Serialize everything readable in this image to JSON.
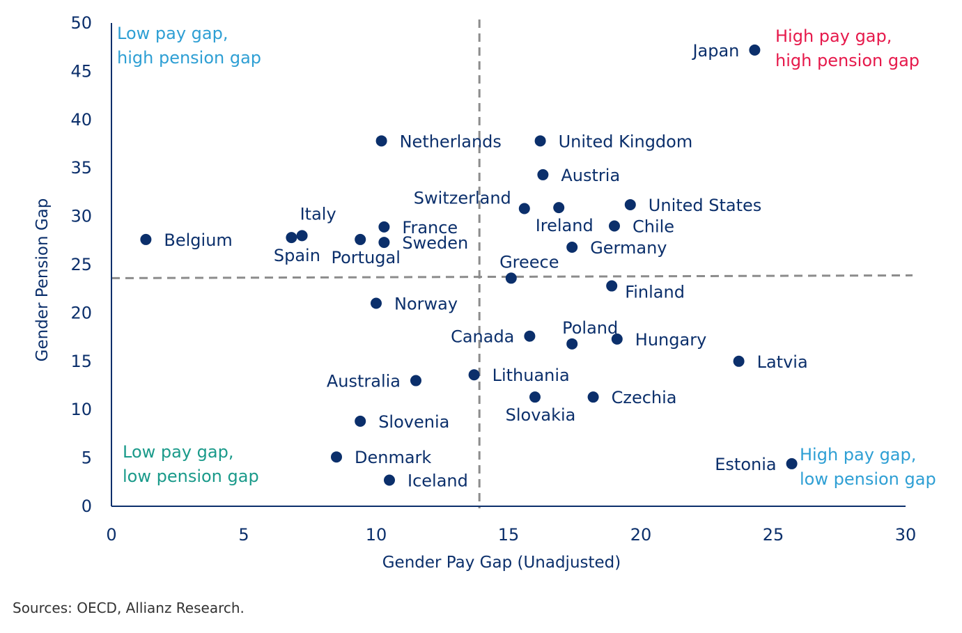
{
  "chart_data": {
    "type": "scatter",
    "xlabel": "Gender Pay Gap (Unadjusted)",
    "ylabel": "Gender Pension Gap",
    "xlim": [
      0,
      30
    ],
    "ylim": [
      0,
      50
    ],
    "x_ticks": [
      0,
      5,
      10,
      15,
      20,
      25,
      30
    ],
    "y_ticks": [
      0,
      5,
      10,
      15,
      20,
      25,
      30,
      35,
      40,
      45,
      50
    ],
    "grid": false,
    "reference_lines": {
      "x": 13.9,
      "y": 23.6
    },
    "points": [
      {
        "label": "Japan",
        "x": 24.3,
        "y": 47.2,
        "label_pos": "left"
      },
      {
        "label": "Netherlands",
        "x": 10.2,
        "y": 37.8,
        "label_pos": "right"
      },
      {
        "label": "United Kingdom",
        "x": 16.2,
        "y": 37.8,
        "label_pos": "right"
      },
      {
        "label": "Austria",
        "x": 16.3,
        "y": 34.3,
        "label_pos": "right"
      },
      {
        "label": "Switzerland",
        "x": 15.6,
        "y": 30.8,
        "label_pos": "above-left"
      },
      {
        "label": "Ireland",
        "x": 16.9,
        "y": 30.9,
        "label_pos": "below"
      },
      {
        "label": "United States",
        "x": 19.6,
        "y": 31.2,
        "label_pos": "right"
      },
      {
        "label": "Chile",
        "x": 19.0,
        "y": 29.0,
        "label_pos": "right"
      },
      {
        "label": "Italy",
        "x": 7.2,
        "y": 28.0,
        "label_pos": "above-right"
      },
      {
        "label": "Spain",
        "x": 6.8,
        "y": 27.8,
        "label_pos": "below"
      },
      {
        "label": "Belgium",
        "x": 1.3,
        "y": 27.6,
        "label_pos": "right"
      },
      {
        "label": "France",
        "x": 10.3,
        "y": 28.9,
        "label_pos": "right"
      },
      {
        "label": "Sweden",
        "x": 10.3,
        "y": 27.3,
        "label_pos": "right"
      },
      {
        "label": "Portugal",
        "x": 9.4,
        "y": 27.6,
        "label_pos": "below"
      },
      {
        "label": "Germany",
        "x": 17.4,
        "y": 26.8,
        "label_pos": "right"
      },
      {
        "label": "Greece",
        "x": 15.1,
        "y": 23.6,
        "label_pos": "above"
      },
      {
        "label": "Finland",
        "x": 18.9,
        "y": 22.8,
        "label_pos": "right-below"
      },
      {
        "label": "Norway",
        "x": 10.0,
        "y": 21.0,
        "label_pos": "right"
      },
      {
        "label": "Canada",
        "x": 15.8,
        "y": 17.6,
        "label_pos": "left"
      },
      {
        "label": "Poland",
        "x": 17.4,
        "y": 16.8,
        "label_pos": "above"
      },
      {
        "label": "Hungary",
        "x": 19.1,
        "y": 17.3,
        "label_pos": "right"
      },
      {
        "label": "Latvia",
        "x": 23.7,
        "y": 15.0,
        "label_pos": "right"
      },
      {
        "label": "Australia",
        "x": 11.5,
        "y": 13.0,
        "label_pos": "left"
      },
      {
        "label": "Lithuania",
        "x": 13.7,
        "y": 13.6,
        "label_pos": "right"
      },
      {
        "label": "Slovakia",
        "x": 16.0,
        "y": 11.3,
        "label_pos": "below"
      },
      {
        "label": "Czechia",
        "x": 18.2,
        "y": 11.3,
        "label_pos": "right"
      },
      {
        "label": "Slovenia",
        "x": 9.4,
        "y": 8.8,
        "label_pos": "right"
      },
      {
        "label": "Denmark",
        "x": 8.5,
        "y": 5.1,
        "label_pos": "right"
      },
      {
        "label": "Iceland",
        "x": 10.5,
        "y": 2.7,
        "label_pos": "right"
      },
      {
        "label": "Estonia",
        "x": 25.7,
        "y": 4.4,
        "label_pos": "left"
      }
    ],
    "quadrant_labels": [
      {
        "lines": [
          "Low pay gap,",
          "high pension gap"
        ],
        "position": "top-left",
        "color": "#2e9fd4"
      },
      {
        "lines": [
          "High pay gap,",
          "high pension gap"
        ],
        "position": "top-right",
        "color": "#e6194b"
      },
      {
        "lines": [
          "Low pay gap,",
          "low pension gap"
        ],
        "position": "bottom-left",
        "color": "#1a9a8a"
      },
      {
        "lines": [
          "High pay gap,",
          "low pension gap"
        ],
        "position": "bottom-right",
        "color": "#2e9fd4"
      }
    ],
    "colors": {
      "marker": "#0b2f6b",
      "axis": "#0b2f6b",
      "reference_line": "#8c8c8c"
    }
  },
  "source_note": "Sources: OECD, Allianz Research."
}
